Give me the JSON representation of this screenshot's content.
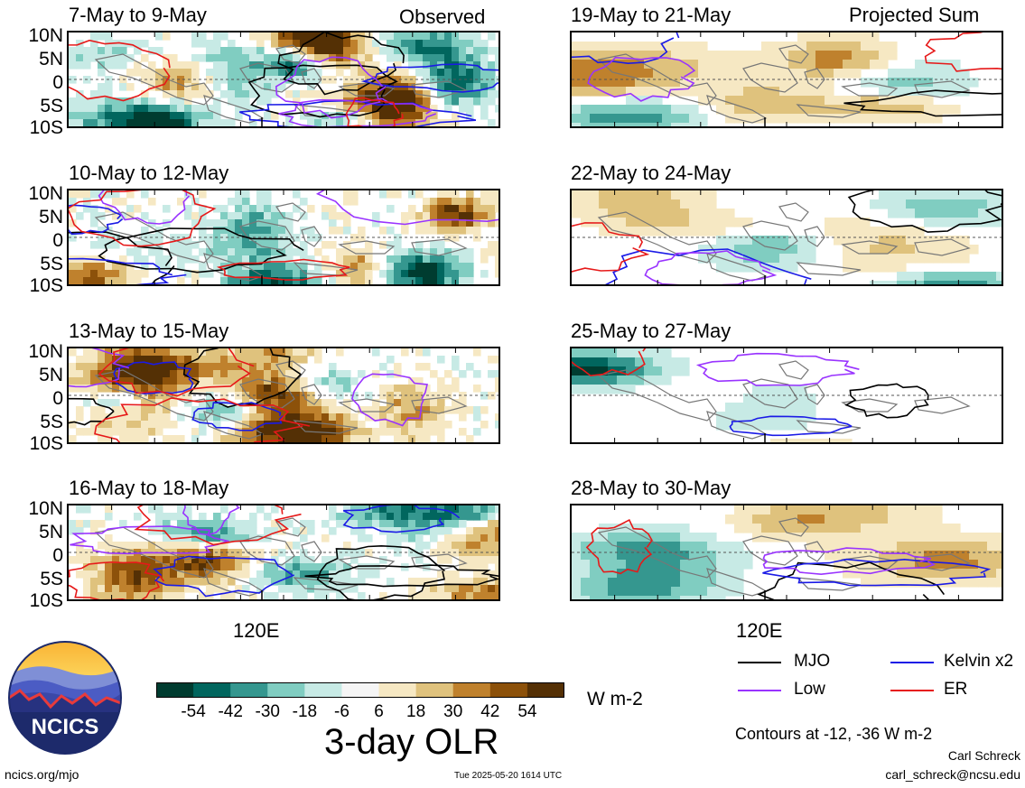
{
  "header": {
    "observed_label": "Observed",
    "projected_label": "Projected Sum"
  },
  "lat_labels": [
    "10N",
    "5N",
    "0",
    "5S",
    "10S"
  ],
  "lon_label": "120E",
  "panels": {
    "observed": [
      "7-May to 9-May",
      "10-May to 12-May",
      "13-May to 15-May",
      "16-May to 18-May"
    ],
    "projected": [
      "19-May to 21-May",
      "22-May to 24-May",
      "25-May to 27-May",
      "28-May to 30-May"
    ]
  },
  "colorbar": {
    "title": "3-day OLR",
    "units": "W m-2",
    "labels": [
      "-54",
      "-42",
      "-30",
      "-18",
      "-6",
      "6",
      "18",
      "30",
      "42",
      "54"
    ],
    "colors": [
      "#003c30",
      "#01665e",
      "#35978f",
      "#80cdc1",
      "#c7eae5",
      "#f5f5f5",
      "#f6e8c3",
      "#dfc27d",
      "#bf812d",
      "#8c510a",
      "#543005"
    ]
  },
  "legend": {
    "mjo": {
      "label": "MJO",
      "color": "#000000"
    },
    "kelvin": {
      "label": "Kelvin x2",
      "color": "#1a1ae6"
    },
    "low": {
      "label": "Low",
      "color": "#9933ff"
    },
    "er": {
      "label": "ER",
      "color": "#e61919"
    }
  },
  "contours_note": "Contours at -12, -36 W m-2",
  "logo_text": "NCICS",
  "footer": {
    "site": "ncics.org/mjo",
    "timestamp": "Tue 2025-05-20 1614 UTC",
    "author": "Carl Schreck",
    "email": "carl_schreck@ncsu.edu"
  }
}
